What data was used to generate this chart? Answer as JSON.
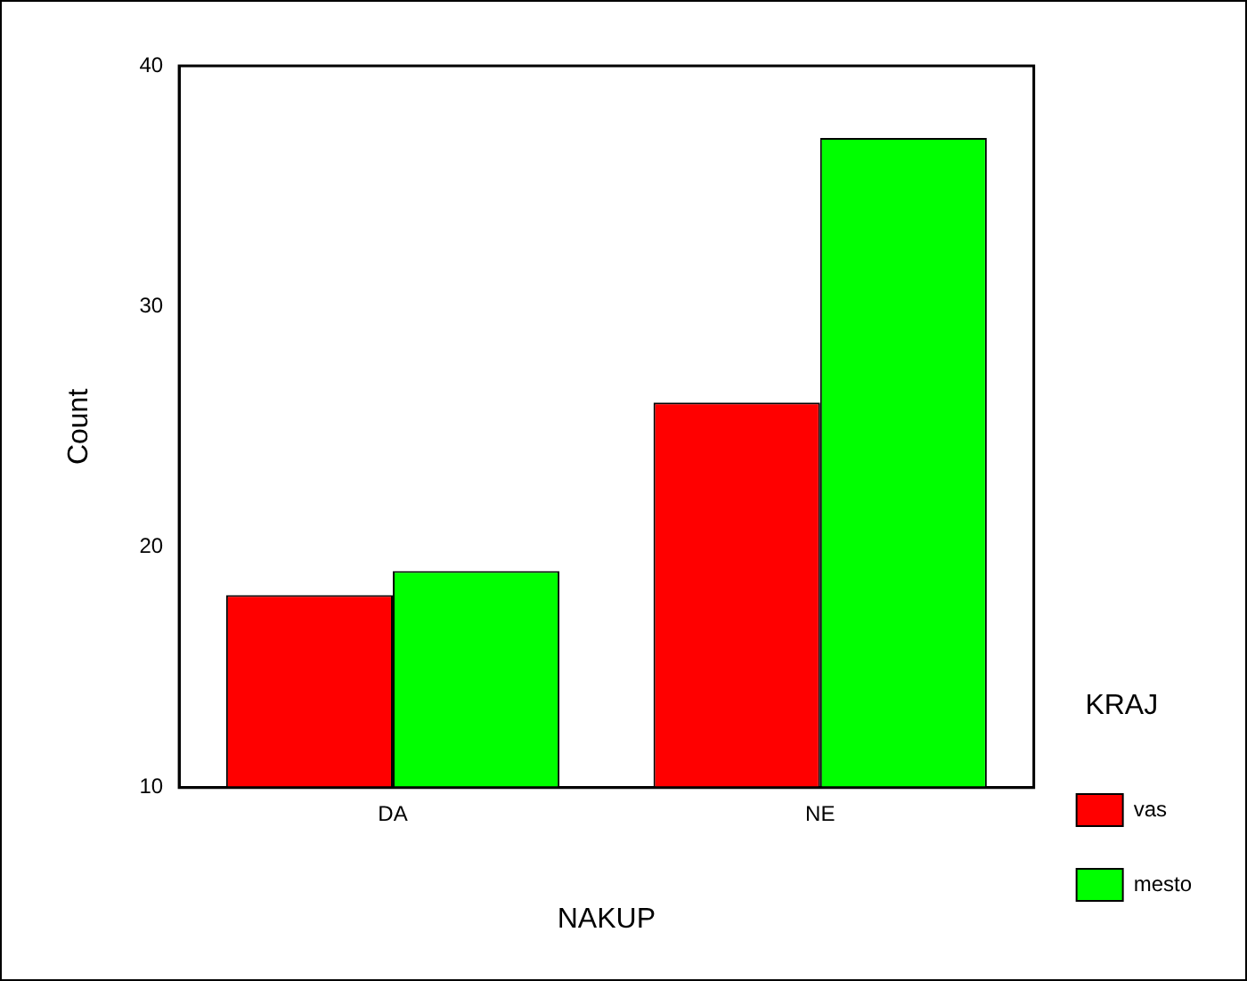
{
  "chart_data": {
    "type": "bar",
    "xlabel": "NAKUP",
    "ylabel": "Count",
    "legend_title": "KRAJ",
    "categories": [
      "DA",
      "NE"
    ],
    "series": [
      {
        "name": "vas",
        "color": "#ff0000",
        "values": [
          18,
          26
        ]
      },
      {
        "name": "mesto",
        "color": "#00ff00",
        "values": [
          19,
          37
        ]
      }
    ],
    "ylim": [
      10,
      40
    ],
    "yticks": [
      10,
      20,
      30,
      40
    ],
    "grid": false,
    "legend": "right"
  }
}
